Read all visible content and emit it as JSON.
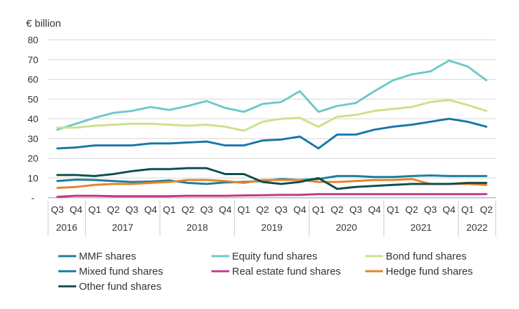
{
  "chart_data": {
    "type": "line",
    "unit_label": "€ billion",
    "y_ticks": [
      "-",
      "10",
      "20",
      "30",
      "40",
      "50",
      "60",
      "70",
      "80"
    ],
    "ylim": [
      0,
      80
    ],
    "grid": true,
    "quarters": [
      "Q3",
      "Q4",
      "Q1",
      "Q2",
      "Q3",
      "Q4",
      "Q1",
      "Q2",
      "Q3",
      "Q4",
      "Q1",
      "Q2",
      "Q3",
      "Q4",
      "Q1",
      "Q2",
      "Q3",
      "Q4",
      "Q1",
      "Q2",
      "Q3",
      "Q4",
      "Q1",
      "Q2"
    ],
    "years": [
      {
        "label": "2016",
        "start": 0,
        "end": 1
      },
      {
        "label": "2017",
        "start": 2,
        "end": 5
      },
      {
        "label": "2018",
        "start": 6,
        "end": 9
      },
      {
        "label": "2019",
        "start": 10,
        "end": 13
      },
      {
        "label": "2020",
        "start": 14,
        "end": 17
      },
      {
        "label": "2021",
        "start": 18,
        "end": 21
      },
      {
        "label": "2022",
        "start": 22,
        "end": 23
      }
    ],
    "legend_position": "bottom",
    "series": [
      {
        "name": "MMF shares",
        "color": "#1a7f99",
        "values": [
          8.5,
          9.2,
          9.0,
          8.5,
          8.0,
          8.2,
          8.8,
          7.5,
          7.0,
          7.8,
          8.0,
          8.5,
          9.5,
          9.0,
          9.5,
          11.0,
          11.0,
          10.5,
          10.5,
          11.0,
          11.3,
          11.0,
          11.0,
          11.0
        ]
      },
      {
        "name": "Equity fund shares",
        "color": "#6ec9c9",
        "values": [
          34.5,
          37.5,
          40.5,
          43.0,
          44.0,
          46.0,
          44.5,
          46.5,
          49.0,
          45.5,
          43.5,
          47.5,
          48.5,
          54.0,
          43.5,
          46.5,
          48.0,
          54.0,
          59.5,
          62.5,
          64.0,
          69.5,
          66.5,
          59.5
        ]
      },
      {
        "name": "Bond fund shares",
        "color": "#cfe08a",
        "values": [
          35.5,
          35.5,
          36.5,
          37.0,
          37.5,
          37.5,
          37.0,
          36.5,
          37.0,
          36.0,
          34.0,
          38.5,
          40.0,
          40.5,
          36.0,
          41.0,
          42.0,
          44.0,
          45.0,
          46.0,
          48.5,
          49.5,
          47.0,
          44.0
        ]
      },
      {
        "name": "Mixed fund shares",
        "color": "#1677a8",
        "values": [
          25.0,
          25.5,
          26.5,
          26.5,
          26.5,
          27.5,
          27.5,
          28.0,
          28.5,
          26.5,
          26.5,
          29.0,
          29.5,
          31.0,
          25.0,
          32.0,
          32.0,
          34.5,
          36.0,
          37.0,
          38.5,
          40.0,
          38.5,
          36.0
        ]
      },
      {
        "name": "Real estate fund shares",
        "color": "#c0398a",
        "values": [
          0.5,
          1.0,
          1.0,
          0.8,
          0.8,
          0.8,
          0.8,
          1.0,
          1.0,
          1.0,
          1.2,
          1.3,
          1.5,
          1.5,
          1.8,
          1.8,
          1.8,
          1.8,
          1.8,
          1.8,
          1.8,
          1.8,
          1.8,
          1.8
        ]
      },
      {
        "name": "Hedge fund shares",
        "color": "#e8822a",
        "values": [
          5.0,
          5.5,
          6.5,
          7.0,
          7.0,
          7.5,
          8.0,
          9.0,
          9.0,
          8.5,
          7.5,
          9.0,
          9.0,
          9.0,
          8.0,
          8.0,
          8.5,
          9.0,
          9.0,
          9.5,
          7.0,
          7.0,
          7.0,
          6.5
        ]
      },
      {
        "name": "Other fund shares",
        "color": "#0e4d4d",
        "values": [
          11.5,
          11.5,
          11.0,
          12.0,
          13.5,
          14.5,
          14.5,
          15.0,
          15.0,
          12.0,
          12.0,
          8.0,
          7.0,
          8.0,
          10.0,
          4.5,
          5.5,
          6.0,
          6.5,
          7.0,
          7.0,
          7.0,
          7.5,
          7.5
        ]
      }
    ]
  }
}
